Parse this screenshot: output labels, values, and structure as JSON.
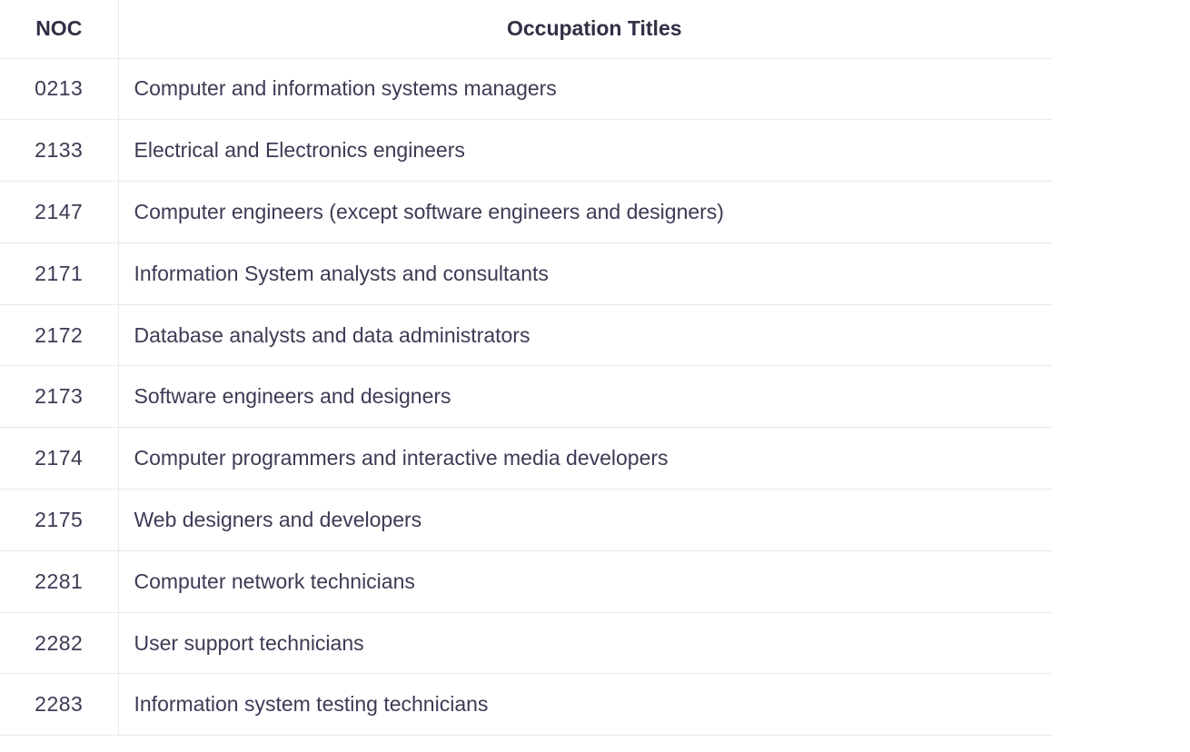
{
  "table": {
    "headers": {
      "noc": "NOC",
      "title": "Occupation Titles"
    },
    "rows": [
      {
        "noc": "0213",
        "title": "Computer and information systems managers"
      },
      {
        "noc": "2133",
        "title": "Electrical and Electronics engineers"
      },
      {
        "noc": "2147",
        "title": "Computer engineers (except software engineers and designers)"
      },
      {
        "noc": "2171",
        "title": "Information System analysts and consultants"
      },
      {
        "noc": "2172",
        "title": "Database analysts and data administrators"
      },
      {
        "noc": "2173",
        "title": "Software engineers and designers"
      },
      {
        "noc": "2174",
        "title": "Computer programmers and interactive media developers"
      },
      {
        "noc": "2175",
        "title": "Web designers and developers"
      },
      {
        "noc": "2281",
        "title": "Computer network technicians"
      },
      {
        "noc": "2282",
        "title": "User support technicians"
      },
      {
        "noc": "2283",
        "title": "Information system testing technicians"
      }
    ]
  }
}
